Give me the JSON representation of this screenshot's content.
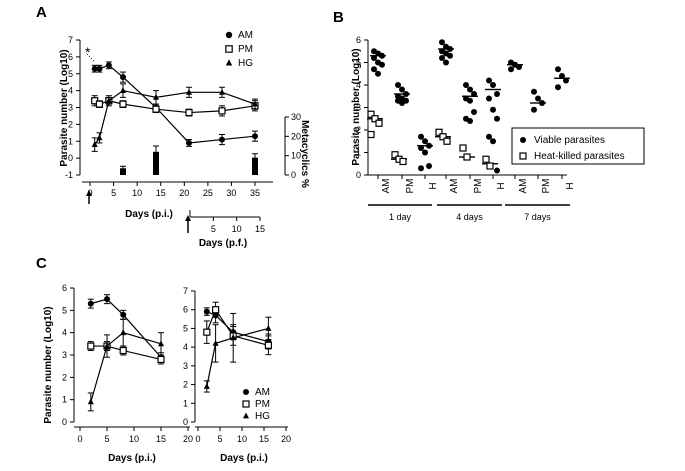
{
  "panel_letters": {
    "a": "A",
    "b": "B",
    "c": "C"
  },
  "legends": {
    "a": [
      {
        "label": "AM",
        "marker": "circle"
      },
      {
        "label": "PM",
        "marker": "square"
      },
      {
        "label": "HG",
        "marker": "triangle"
      }
    ],
    "b": [
      {
        "label": "Viable parasites",
        "marker": "circle"
      },
      {
        "label": "Heat-killed parasites",
        "marker": "square"
      }
    ],
    "c": [
      {
        "label": "AM",
        "marker": "circle"
      },
      {
        "label": "PM",
        "marker": "square"
      },
      {
        "label": "HG",
        "marker": "triangle"
      }
    ]
  },
  "chart_data": [
    {
      "panel": "A",
      "type": "line",
      "ylabel": "Parasite number (Log10)",
      "y2label": "Metacyclics %",
      "xlabel": "Days (p.i.)",
      "x2label": "Days (p.f.)",
      "annotation": "*",
      "ylim": [
        -1,
        7
      ],
      "yticks": [
        "-1",
        "0",
        "1",
        "2",
        "3",
        "4",
        "5",
        "6",
        "7"
      ],
      "xticks": [
        "0",
        "5",
        "10",
        "15",
        "20",
        "25",
        "30",
        "35"
      ],
      "x2ticks": [
        "5",
        "10",
        "15"
      ],
      "y2ticks": [
        "0",
        "10",
        "20",
        "30"
      ],
      "y2lim": [
        0,
        30
      ],
      "series": [
        {
          "name": "AM",
          "marker": "circle",
          "x": [
            1,
            2,
            4,
            7,
            14,
            21,
            28,
            35
          ],
          "y": [
            5.3,
            5.3,
            5.5,
            4.8,
            3.0,
            0.9,
            1.1,
            1.3
          ],
          "err": [
            0.2,
            0.2,
            0.2,
            0.3,
            0.2,
            0.2,
            0.3,
            0.3
          ]
        },
        {
          "name": "PM",
          "marker": "square",
          "x": [
            1,
            2,
            4,
            7,
            14,
            21,
            28,
            35
          ],
          "y": [
            3.4,
            3.2,
            3.4,
            3.2,
            2.9,
            2.7,
            2.8,
            3.1
          ],
          "err": [
            0.3,
            0.2,
            0.2,
            0.2,
            0.2,
            0.2,
            0.3,
            0.3
          ]
        },
        {
          "name": "HG",
          "marker": "triangle",
          "x": [
            1,
            2,
            4,
            7,
            14,
            21,
            28,
            35
          ],
          "y": [
            0.8,
            1.2,
            3.4,
            4.0,
            3.6,
            3.9,
            3.9,
            3.2
          ],
          "err": [
            0.4,
            0.3,
            0.3,
            0.4,
            0.4,
            0.3,
            0.3,
            0.3
          ]
        }
      ],
      "bars": {
        "name": "Metacyclics %",
        "x": [
          7,
          14,
          35
        ],
        "values": [
          3.5,
          12,
          9
        ],
        "err": [
          1,
          3,
          2
        ]
      },
      "arrows_at": [
        0,
        21
      ]
    },
    {
      "panel": "B",
      "type": "scatter",
      "ylabel": "Parasite number (Log10)",
      "ylim": [
        0,
        6
      ],
      "yticks": [
        "0",
        "1",
        "2",
        "3",
        "4",
        "5",
        "6"
      ],
      "categories": [
        "AM",
        "PM",
        "H",
        "AM",
        "PM",
        "H",
        "AM",
        "PM",
        "H"
      ],
      "groups": [
        "1 day",
        "4 days",
        "7 days"
      ],
      "viable": [
        {
          "mean": 5.3,
          "points": [
            5.5,
            5.4,
            5.3,
            5.2,
            5.0,
            4.9,
            4.7,
            4.5
          ]
        },
        {
          "mean": 3.6,
          "points": [
            4.0,
            3.8,
            3.6,
            3.5,
            3.4,
            3.3,
            3.3,
            3.2
          ]
        },
        {
          "mean": 1.3,
          "points": [
            1.7,
            1.5,
            1.3,
            1.2,
            1.0,
            0.4,
            0.3
          ]
        },
        {
          "mean": 5.6,
          "points": [
            5.9,
            5.7,
            5.6,
            5.5,
            5.4,
            5.3,
            5.2,
            5.0
          ]
        },
        {
          "mean": 3.5,
          "points": [
            4.0,
            3.8,
            3.6,
            3.4,
            3.3,
            2.8,
            2.5,
            2.4
          ]
        },
        {
          "mean": 3.8,
          "points": [
            4.2,
            4.0,
            3.6,
            3.4,
            2.9,
            2.5,
            1.7,
            1.5,
            0.2
          ]
        },
        {
          "mean": 4.9,
          "points": [
            5.0,
            4.9,
            4.8,
            4.7
          ]
        },
        {
          "mean": 3.2,
          "points": [
            3.7,
            3.4,
            3.2,
            2.9
          ]
        },
        {
          "mean": 4.3,
          "points": [
            4.7,
            4.4,
            4.2,
            3.9
          ]
        }
      ],
      "heat_killed": [
        {
          "mean": 2.5,
          "points": [
            2.7,
            2.5,
            2.3,
            1.8
          ]
        },
        {
          "mean": 0.7,
          "points": [
            0.9,
            0.7,
            0.6
          ]
        },
        null,
        {
          "mean": 1.7,
          "points": [
            1.9,
            1.7,
            1.5
          ]
        },
        {
          "mean": 0.8,
          "points": [
            1.2,
            0.8
          ]
        },
        {
          "mean": 0.5,
          "points": [
            0.7,
            0.4
          ]
        },
        null,
        null,
        null
      ]
    },
    {
      "panel": "C-left",
      "type": "line",
      "ylabel": "Parasite number (Log10)",
      "xlabel": "Days (p.i.)",
      "ylim": [
        0,
        6
      ],
      "yticks": [
        "0",
        "1",
        "2",
        "3",
        "4",
        "5",
        "6"
      ],
      "xlim": [
        0,
        20
      ],
      "xticks": [
        "0",
        "5",
        "10",
        "15",
        "20"
      ],
      "series": [
        {
          "name": "AM",
          "marker": "circle",
          "x": [
            2,
            5,
            8,
            15
          ],
          "y": [
            5.3,
            5.5,
            4.8,
            2.9
          ],
          "err": [
            0.2,
            0.2,
            0.2,
            0.2
          ]
        },
        {
          "name": "PM",
          "marker": "square",
          "x": [
            2,
            5,
            8,
            15
          ],
          "y": [
            3.4,
            3.4,
            3.2,
            2.8
          ],
          "err": [
            0.2,
            0.2,
            0.2,
            0.2
          ]
        },
        {
          "name": "HG",
          "marker": "triangle",
          "x": [
            2,
            5,
            8,
            15
          ],
          "y": [
            0.9,
            3.4,
            4.0,
            3.5
          ],
          "err": [
            0.4,
            0.5,
            0.6,
            0.5
          ]
        }
      ]
    },
    {
      "panel": "C-right",
      "type": "line",
      "xlabel": "Days (p.i.)",
      "ylim": [
        0,
        7
      ],
      "yticks": [
        "0",
        "1",
        "2",
        "3",
        "4",
        "5",
        "6",
        "7"
      ],
      "xlim": [
        0,
        20
      ],
      "xticks": [
        "0",
        "5",
        "10",
        "15",
        "20"
      ],
      "series": [
        {
          "name": "AM",
          "marker": "circle",
          "x": [
            2,
            4,
            8,
            16
          ],
          "y": [
            5.9,
            5.7,
            4.8,
            4.3
          ],
          "err": [
            0.2,
            0.4,
            0.4,
            0.4
          ]
        },
        {
          "name": "PM",
          "marker": "square",
          "x": [
            2,
            4,
            8,
            16
          ],
          "y": [
            4.8,
            6.0,
            4.6,
            4.1
          ],
          "err": [
            0.6,
            0.4,
            0.5,
            0.5
          ]
        },
        {
          "name": "HG",
          "marker": "triangle",
          "x": [
            2,
            4,
            8,
            16
          ],
          "y": [
            1.9,
            4.2,
            4.5,
            5.0
          ],
          "err": [
            0.3,
            1.0,
            1.3,
            0.6
          ]
        }
      ]
    }
  ]
}
